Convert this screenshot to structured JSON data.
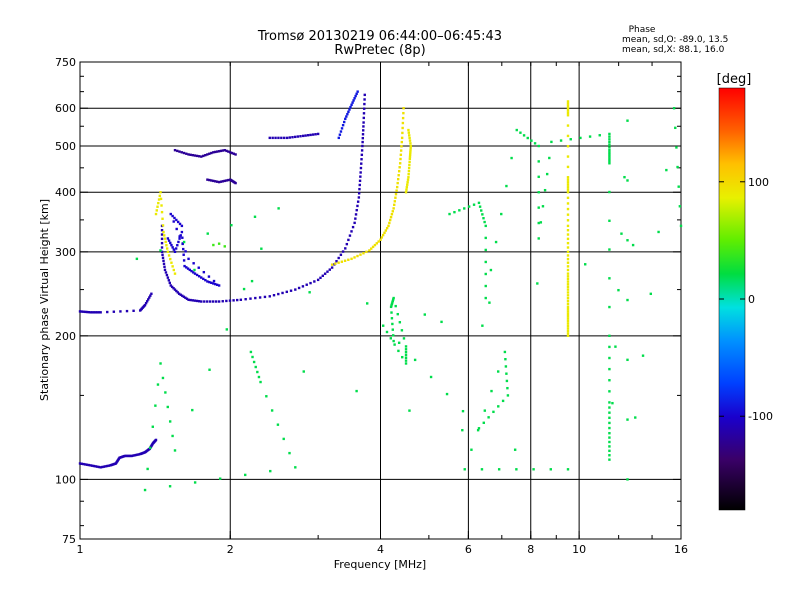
{
  "chart_data": {
    "type": "scatter",
    "title": "Tromsø 20130219 06:44:00–06:45:43",
    "subtitle": "RwPretec (8p)",
    "xlabel": "Frequency [MHz]",
    "ylabel": "Stationary phase Virtual Height [km]",
    "x_scale": "log",
    "y_scale": "log",
    "xlim": [
      1,
      16
    ],
    "ylim": [
      75,
      750
    ],
    "x_ticks": [
      {
        "value": 1,
        "label": "1"
      },
      {
        "value": 2,
        "label": "2"
      },
      {
        "value": 4,
        "label": "4"
      },
      {
        "value": 6,
        "label": "6"
      },
      {
        "value": 8,
        "label": "8"
      },
      {
        "value": 10,
        "label": "10"
      },
      {
        "value": 16,
        "label": "16"
      }
    ],
    "x_grid": [
      2,
      4,
      6,
      8,
      10
    ],
    "y_ticks": [
      {
        "value": 75,
        "label": "75"
      },
      {
        "value": 100,
        "label": "100"
      },
      {
        "value": 200,
        "label": "200"
      },
      {
        "value": 300,
        "label": "300"
      },
      {
        "value": 400,
        "label": "400"
      },
      {
        "value": 500,
        "label": "500"
      },
      {
        "value": 600,
        "label": "600"
      },
      {
        "value": 750,
        "label": "750"
      }
    ],
    "y_grid": [
      100,
      200,
      300,
      400,
      500,
      600
    ],
    "stats": {
      "heading": "Phase",
      "line_o": "mean, sd,O: -89.0, 13.5",
      "line_x": "mean, sd,X:  88.1, 16.0"
    },
    "colorbar": {
      "label": "[deg]",
      "range": [
        -180,
        180
      ],
      "ticks": [
        {
          "value": 100,
          "label": "100"
        },
        {
          "value": 0,
          "label": "0"
        },
        {
          "value": -100,
          "label": "-100"
        }
      ]
    },
    "traces": [
      {
        "name": "E-layer O",
        "phase": -110,
        "points": [
          [
            1.0,
            108
          ],
          [
            1.05,
            107
          ],
          [
            1.1,
            106
          ],
          [
            1.15,
            107
          ],
          [
            1.18,
            108
          ],
          [
            1.2,
            111
          ],
          [
            1.23,
            112
          ],
          [
            1.27,
            112
          ],
          [
            1.32,
            113
          ],
          [
            1.35,
            114
          ],
          [
            1.38,
            116
          ],
          [
            1.4,
            119
          ],
          [
            1.42,
            121
          ]
        ]
      },
      {
        "name": "F-low trace",
        "phase": -110,
        "points": [
          [
            1.0,
            225
          ],
          [
            1.05,
            224
          ],
          [
            1.1,
            224
          ],
          [
            1.32,
            226
          ],
          [
            1.35,
            232
          ],
          [
            1.39,
            245
          ]
        ]
      },
      {
        "name": "F1 cusp O",
        "phase": -110,
        "points": [
          [
            1.46,
            340
          ],
          [
            1.46,
            300
          ],
          [
            1.48,
            275
          ],
          [
            1.52,
            255
          ],
          [
            1.58,
            245
          ],
          [
            1.65,
            238
          ],
          [
            1.75,
            236
          ],
          [
            1.9,
            236
          ],
          [
            2.1,
            238
          ],
          [
            2.4,
            242
          ],
          [
            2.7,
            250
          ],
          [
            3.0,
            262
          ],
          [
            3.2,
            278
          ],
          [
            3.4,
            305
          ],
          [
            3.55,
            345
          ],
          [
            3.62,
            390
          ],
          [
            3.65,
            440
          ],
          [
            3.68,
            500
          ],
          [
            3.7,
            560
          ],
          [
            3.72,
            640
          ]
        ]
      },
      {
        "name": "F2 O branch",
        "phase": -90,
        "points": [
          [
            3.3,
            520
          ],
          [
            3.4,
            570
          ],
          [
            3.5,
            610
          ],
          [
            3.6,
            650
          ]
        ]
      },
      {
        "name": "F2 X trace",
        "phase": 95,
        "points": [
          [
            3.2,
            282
          ],
          [
            3.5,
            290
          ],
          [
            3.8,
            302
          ],
          [
            4.0,
            318
          ],
          [
            4.15,
            340
          ],
          [
            4.25,
            370
          ],
          [
            4.32,
            410
          ],
          [
            4.38,
            460
          ],
          [
            4.42,
            520
          ],
          [
            4.45,
            600
          ]
        ]
      },
      {
        "name": "F2 X cluster",
        "phase": 90,
        "points": [
          [
            4.5,
            400
          ],
          [
            4.55,
            430
          ],
          [
            4.58,
            470
          ],
          [
            4.6,
            500
          ],
          [
            4.55,
            540
          ]
        ]
      },
      {
        "name": "Upper blob A",
        "phase": -120,
        "points": [
          [
            1.55,
            490
          ],
          [
            1.65,
            480
          ],
          [
            1.75,
            475
          ],
          [
            1.85,
            485
          ],
          [
            1.95,
            490
          ],
          [
            2.05,
            480
          ]
        ]
      },
      {
        "name": "Upper blob B",
        "phase": -120,
        "points": [
          [
            1.8,
            425
          ],
          [
            1.9,
            420
          ],
          [
            2.0,
            425
          ],
          [
            2.05,
            418
          ]
        ]
      },
      {
        "name": "Upper arc",
        "phase": -110,
        "points": [
          [
            2.4,
            520
          ],
          [
            2.6,
            520
          ],
          [
            2.8,
            525
          ],
          [
            3.0,
            530
          ]
        ]
      },
      {
        "name": "Cusp noise",
        "phase": -100,
        "points": [
          [
            1.5,
            320
          ],
          [
            1.55,
            300
          ],
          [
            1.6,
            330
          ],
          [
            1.62,
            280
          ],
          [
            1.7,
            270
          ],
          [
            1.8,
            260
          ],
          [
            1.9,
            255
          ],
          [
            1.65,
            290
          ],
          [
            1.52,
            360
          ],
          [
            1.6,
            340
          ]
        ]
      },
      {
        "name": "Yellow scatter left",
        "phase": 90,
        "points": [
          [
            1.42,
            360
          ],
          [
            1.45,
            400
          ],
          [
            1.47,
            330
          ],
          [
            1.5,
            300
          ],
          [
            1.55,
            270
          ]
        ]
      },
      {
        "name": "Green scatter",
        "phase": 40,
        "points": [
          [
            1.85,
            310
          ],
          [
            1.9,
            312
          ],
          [
            1.95,
            308
          ]
        ]
      },
      {
        "name": "Column 9.5 MHz",
        "phase": 90,
        "points": [
          [
            9.5,
            620
          ],
          [
            9.5,
            580
          ],
          [
            9.5,
            430
          ],
          [
            9.5,
            400
          ],
          [
            9.5,
            340
          ],
          [
            9.5,
            300
          ],
          [
            9.5,
            270
          ],
          [
            9.5,
            250
          ],
          [
            9.5,
            230
          ],
          [
            9.5,
            215
          ],
          [
            9.5,
            200
          ]
        ]
      },
      {
        "name": "Scattered noise",
        "phase": 20,
        "points": [
          [
            5.5,
            360
          ],
          [
            6.3,
            380
          ],
          [
            6.5,
            340
          ],
          [
            6.5,
            240
          ],
          [
            7.5,
            540
          ],
          [
            8.3,
            500
          ],
          [
            8.3,
            320
          ],
          [
            8.8,
            510
          ],
          [
            11.5,
            530
          ],
          [
            11.5,
            490
          ],
          [
            11.5,
            460
          ],
          [
            11.5,
            200
          ],
          [
            11.5,
            145
          ],
          [
            11.5,
            125
          ],
          [
            11.5,
            110
          ],
          [
            12.5,
            565
          ],
          [
            12.5,
            100
          ],
          [
            15.5,
            600
          ],
          [
            16,
            340
          ],
          [
            4.25,
            195
          ],
          [
            4.2,
            230
          ],
          [
            4.25,
            240
          ],
          [
            4.5,
            190
          ],
          [
            4.5,
            175
          ],
          [
            4.05,
            210
          ],
          [
            6.3,
            128
          ],
          [
            7.2,
            150
          ],
          [
            7.1,
            185
          ],
          [
            5.9,
            105
          ],
          [
            9.5,
            105
          ],
          [
            2.2,
            185
          ],
          [
            2.3,
            160
          ],
          [
            2.7,
            106
          ],
          [
            1.35,
            95
          ],
          [
            1.45,
            175
          ],
          [
            1.55,
            115
          ],
          [
            2.5,
            370
          ],
          [
            1.3,
            290
          ],
          [
            6.4,
            210
          ]
        ]
      }
    ]
  }
}
